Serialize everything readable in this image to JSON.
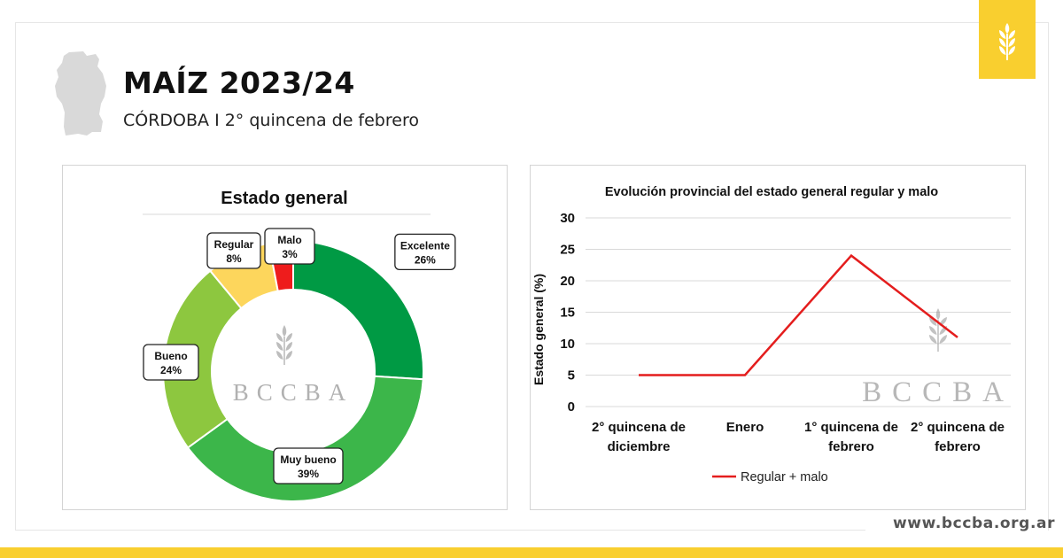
{
  "header": {
    "title": "MAÍZ 2023/24",
    "subtitle": "CÓRDOBA I 2° quincena de febrero"
  },
  "footer": {
    "url": "www.bccba.org.ar"
  },
  "colors": {
    "brand_yellow": "#f9cf2f",
    "line_red": "#e41d1d"
  },
  "icons": {
    "badge": "wheat-icon",
    "map": "cordoba-map-icon"
  },
  "watermark": {
    "text": "BCCBA"
  },
  "chart_data": [
    {
      "type": "pie",
      "title": "Estado general",
      "slices": [
        {
          "label": "Excelente",
          "value": 26,
          "display": "26%",
          "color": "#009a44"
        },
        {
          "label": "Muy bueno",
          "value": 39,
          "display": "39%",
          "color": "#3cb64a"
        },
        {
          "label": "Bueno",
          "value": 24,
          "display": "24%",
          "color": "#8dc73f"
        },
        {
          "label": "Regular",
          "value": 8,
          "display": "8%",
          "color": "#fdd65c"
        },
        {
          "label": "Malo",
          "value": 3,
          "display": "3%",
          "color": "#ee1c1c"
        }
      ]
    },
    {
      "type": "line",
      "title": "Evolución provincial del estado general regular y malo",
      "ylabel": "Estado general (%)",
      "xlabel": "",
      "ylim": [
        0,
        30
      ],
      "yticks": [
        0,
        5,
        10,
        15,
        20,
        25,
        30
      ],
      "categories": [
        [
          "2° quincena de",
          "diciembre"
        ],
        [
          "Enero"
        ],
        [
          "1° quincena de",
          "febrero"
        ],
        [
          "2° quincena de",
          "febrero"
        ]
      ],
      "series": [
        {
          "name": "Regular + malo",
          "values": [
            5,
            5,
            24,
            11
          ],
          "color": "#e41d1d"
        }
      ],
      "grid": true,
      "legend": "bottom"
    }
  ]
}
